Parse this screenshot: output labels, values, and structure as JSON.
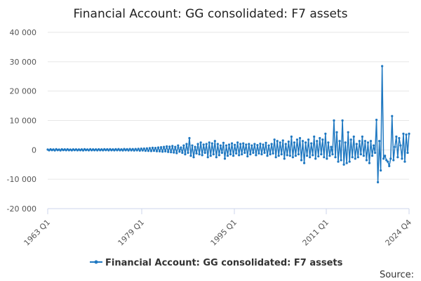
{
  "chart_data": {
    "type": "line",
    "title": "Financial Account: GG consolidated: F7 assets",
    "x_start": "1963 Q1",
    "x_end": "2024 Q4",
    "x_tick_labels": [
      "1963 Q1",
      "1979 Q1",
      "1995 Q1",
      "2011 Q1",
      "2024 Q4"
    ],
    "y_tick_labels": [
      "40 000",
      "30 000",
      "20 000",
      "10 000",
      "0",
      "-10 000",
      "-20 000"
    ],
    "ylim": [
      -20000,
      40000
    ],
    "grid": true,
    "legend_position": "bottom",
    "series": [
      {
        "name": "Financial Account: GG consolidated: F7 assets",
        "color": "#1f78c1",
        "values": [
          100,
          -150,
          200,
          -100,
          150,
          -200,
          250,
          -100,
          120,
          -180,
          200,
          -90,
          160,
          -140,
          210,
          -120,
          130,
          -160,
          180,
          -110,
          190,
          -150,
          140,
          -130,
          170,
          -190,
          220,
          -100,
          150,
          -170,
          230,
          -140,
          160,
          -120,
          190,
          -160,
          210,
          -130,
          180,
          -150,
          240,
          -110,
          200,
          -170,
          250,
          -130,
          180,
          -160,
          220,
          -140,
          260,
          -150,
          190,
          -180,
          280,
          -120,
          230,
          -200,
          300,
          -160,
          270,
          -210,
          310,
          -170,
          350,
          -250,
          400,
          -200,
          450,
          -300,
          500,
          -350,
          600,
          -400,
          700,
          -300,
          650,
          -450,
          800,
          -500,
          900,
          -600,
          1000,
          -500,
          1200,
          -700,
          1100,
          -800,
          1300,
          -900,
          1000,
          -1100,
          1500,
          -600,
          800,
          -1000,
          1500,
          -1500,
          2000,
          -1000,
          4000,
          -2000,
          1500,
          -2500,
          1000,
          -1200,
          2000,
          -1500,
          2500,
          -1800,
          1800,
          -1000,
          2000,
          -2500,
          2500,
          -2000,
          2200,
          -1500,
          3000,
          -2500,
          2000,
          -1800,
          1500,
          -1000,
          2400,
          -3000,
          1500,
          -2000,
          1800,
          -1500,
          2200,
          -2000,
          1700,
          -1200,
          2500,
          -1800,
          2000,
          -1500,
          2200,
          -1000,
          1800,
          -2200,
          2000,
          -1500,
          1500,
          -1000,
          2000,
          -1800,
          1600,
          -1200,
          2100,
          -1500,
          1800,
          -1000,
          2400,
          -2000,
          1500,
          -1500,
          2000,
          -1200,
          3500,
          -2500,
          3000,
          -2000,
          2500,
          -1500,
          3200,
          -3000,
          2000,
          -1800,
          2800,
          -2000,
          4500,
          -2500,
          2500,
          -2000,
          3500,
          -1500,
          4000,
          -3500,
          3000,
          -4500,
          2500,
          -2000,
          3500,
          -2500,
          2200,
          -1800,
          4500,
          -3000,
          3000,
          -2200,
          4000,
          -1500,
          3500,
          -2500,
          5500,
          -3000,
          2500,
          -2000,
          1000,
          -1500,
          10000,
          -2500,
          6000,
          -4000,
          3000,
          -3500,
          10000,
          -5000,
          2500,
          -4500,
          6000,
          -4000,
          3500,
          -2500,
          4500,
          -3000,
          2000,
          -2500,
          3000,
          -1500,
          4500,
          -2000,
          3000,
          -3500,
          2500,
          -4500,
          3000,
          -2000,
          1500,
          -1000,
          10200,
          -11000,
          3000,
          -7000,
          28500,
          -3000,
          -2000,
          -3500,
          -4000,
          -5500,
          -3000,
          11500,
          -3500,
          1000,
          4500,
          -2500,
          4000,
          1500,
          -3000,
          5500,
          -4000,
          5200,
          -1000,
          5500
        ]
      }
    ],
    "source_label": "Source:"
  }
}
